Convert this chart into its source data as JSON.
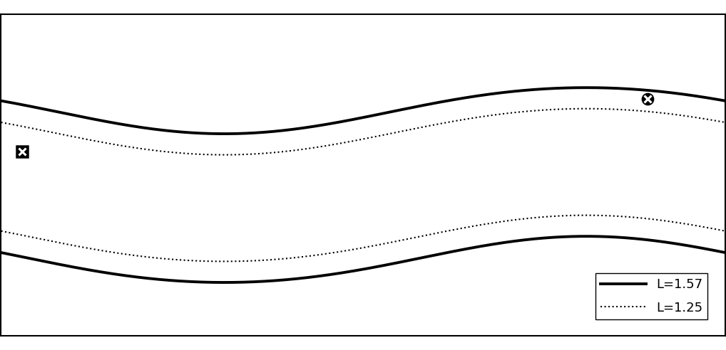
{
  "background_color": "#ffffff",
  "land_color": "#c8c8c8",
  "ocean_color": "#ffffff",
  "border_color": "#000000",
  "L157_linewidth": 2.8,
  "L125_linewidth": 1.5,
  "sapporo_lon": 141.35,
  "sapporo_lat": 43.06,
  "johnston_lon": -169.52,
  "johnston_lat": 16.73,
  "pole_lat": 78.5,
  "pole_lon": -69.0,
  "xlim": [
    -180,
    180
  ],
  "ylim": [
    -75,
    85
  ],
  "legend_labels": [
    "L=1.57",
    "L=1.25"
  ],
  "marker_size": 11,
  "marker_lw": 1.8
}
